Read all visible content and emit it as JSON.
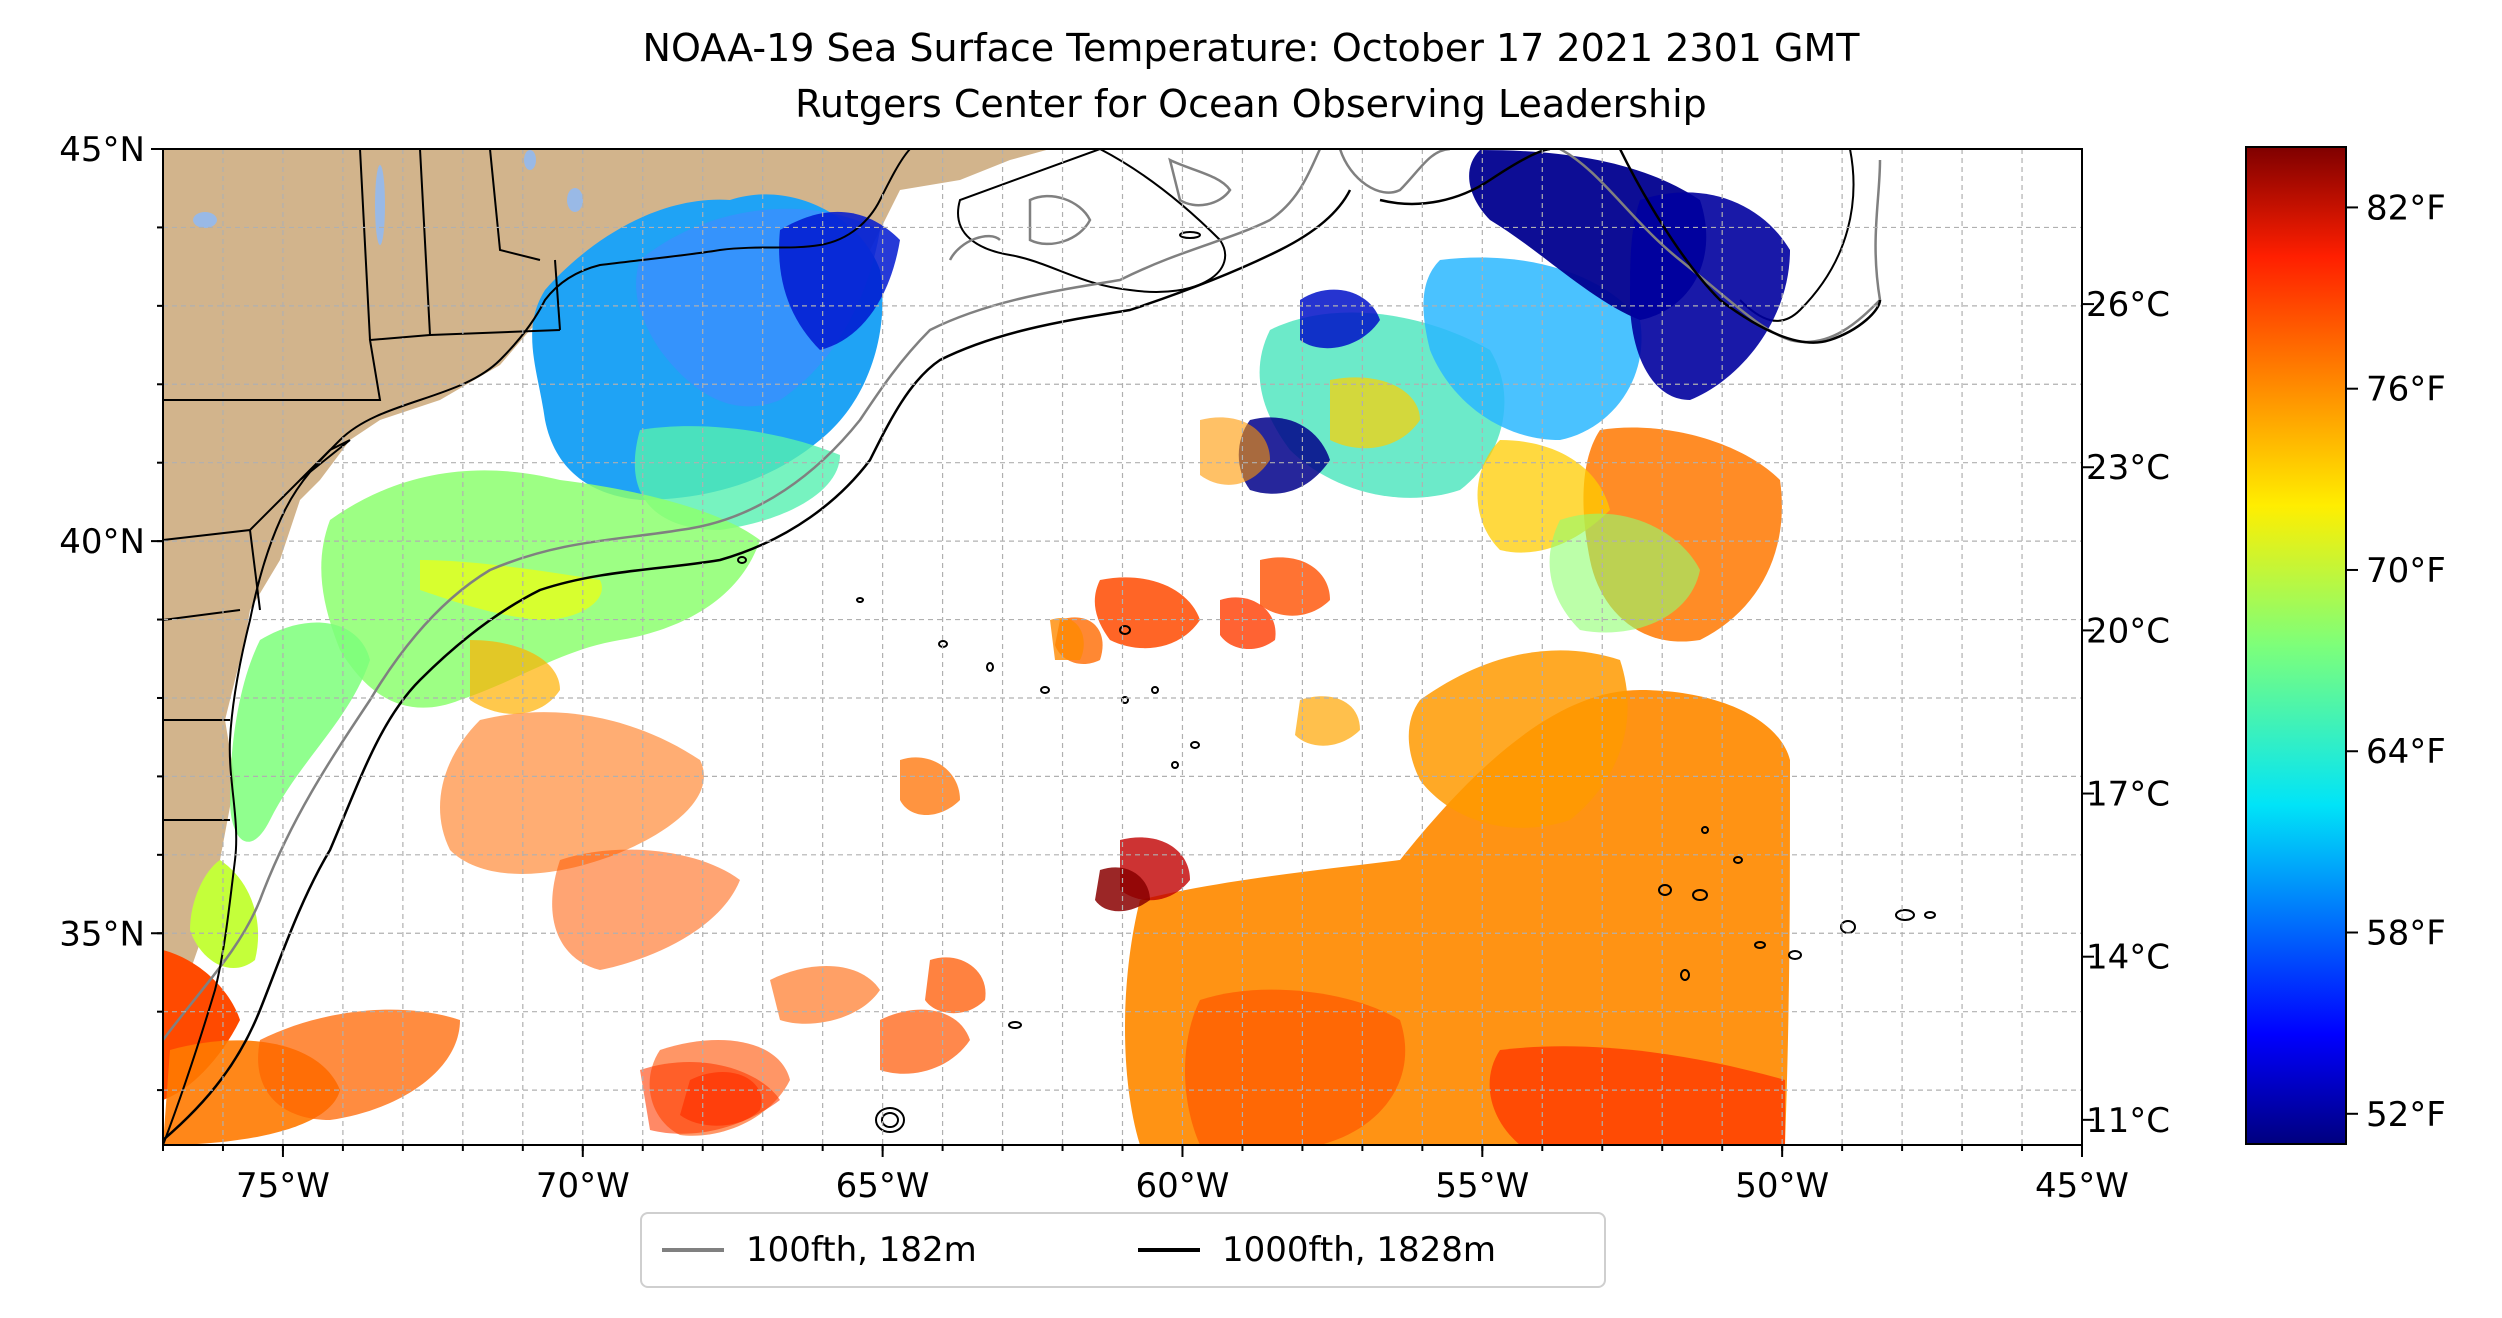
{
  "title": {
    "line1": "NOAA-19 Sea Surface Temperature: October 17 2021 2301 GMT",
    "line2": "Rutgers Center for Ocean Observing Leadership"
  },
  "map": {
    "lon_range": [
      -77,
      -45
    ],
    "lat_range": [
      32.3,
      45
    ],
    "x_ticks": [
      {
        "lon": -75,
        "label": "75°W"
      },
      {
        "lon": -70,
        "label": "70°W"
      },
      {
        "lon": -65,
        "label": "65°W"
      },
      {
        "lon": -60,
        "label": "60°W"
      },
      {
        "lon": -55,
        "label": "55°W"
      },
      {
        "lon": -50,
        "label": "50°W"
      },
      {
        "lon": -45,
        "label": "45°W"
      }
    ],
    "y_ticks": [
      {
        "lat": 45,
        "label": "45°N"
      },
      {
        "lat": 40,
        "label": "40°N"
      },
      {
        "lat": 35,
        "label": "35°N"
      }
    ],
    "gridlines": true,
    "gridline_style": "dashed",
    "land_color": "#d2b48c",
    "lake_color": "#99b9e6",
    "features": [
      "sea-surface-temperature",
      "100fth-isobath",
      "1000fth-isobath",
      "coastline",
      "state-boundaries"
    ]
  },
  "colorbar": {
    "cmap": "jet",
    "celsius_ticks": [
      "11°C",
      "14°C",
      "17°C",
      "20°C",
      "23°C",
      "26°C"
    ],
    "fahrenheit_ticks": [
      "52°F",
      "58°F",
      "64°F",
      "70°F",
      "76°F",
      "82°F"
    ],
    "celsius_values": [
      11,
      14,
      17,
      20,
      23,
      26
    ],
    "fahrenheit_values": [
      52,
      58,
      64,
      70,
      76,
      82
    ],
    "fahrenheit_range": [
      51,
      84
    ]
  },
  "legend": {
    "items": [
      {
        "label": "100fth, 182m",
        "color": "#808080"
      },
      {
        "label": "1000fth, 1828m",
        "color": "#000000"
      }
    ]
  }
}
